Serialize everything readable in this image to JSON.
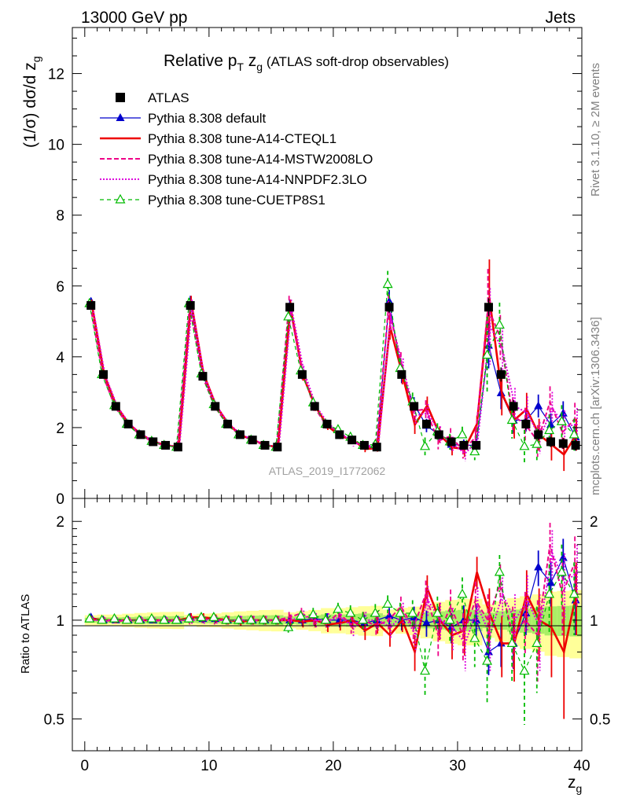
{
  "header": {
    "left": "13000 GeV pp",
    "right": "Jets",
    "side_rivet": "Rivet 3.1.10, ≥ 2M events",
    "side_mcplots": "mcplots.cern.ch [arXiv:1306.3436]",
    "watermark": "ATLAS_2019_I1772062"
  },
  "chart_data": {
    "type": "scatter",
    "title_main": "Relative p",
    "title_sub_T": "T",
    "title_mid": " z",
    "title_sub_g": "g",
    "title_note": " (ATLAS soft-drop observables)",
    "ylabel_main": "(1/σ) dσ/d z",
    "ylabel_sub": "g",
    "ylabel_ratio": "Ratio to ATLAS",
    "xlabel_main": "z",
    "xlabel_sub": "g",
    "xlim": [
      -1,
      40
    ],
    "ylim_main": [
      0,
      13.3
    ],
    "ylim_ratio": [
      0.4,
      2.35
    ],
    "x_ticks": [
      "0",
      "10",
      "20",
      "30",
      "40"
    ],
    "y_ticks_main": [
      "0",
      "2",
      "4",
      "6",
      "8",
      "10",
      "12"
    ],
    "y_ticks_ratio": [
      "0.5",
      "1",
      "2"
    ],
    "x": [
      0.5,
      1.5,
      2.5,
      3.5,
      4.5,
      5.5,
      6.5,
      7.5,
      8.5,
      9.5,
      10.5,
      11.5,
      12.5,
      13.5,
      14.5,
      15.5,
      16.5,
      17.5,
      18.5,
      19.5,
      20.5,
      21.5,
      22.5,
      23.5,
      24.5,
      25.5,
      26.5,
      27.5,
      28.5,
      29.5,
      30.5,
      31.5,
      32.5,
      33.5,
      34.5,
      35.5,
      36.5,
      37.5,
      38.5,
      39.5
    ],
    "atlas": [
      5.45,
      3.5,
      2.6,
      2.1,
      1.8,
      1.6,
      1.5,
      1.45,
      5.45,
      3.45,
      2.6,
      2.1,
      1.8,
      1.65,
      1.5,
      1.45,
      5.4,
      3.5,
      2.6,
      2.1,
      1.8,
      1.65,
      1.5,
      1.45,
      5.4,
      3.5,
      2.6,
      2.1,
      1.8,
      1.6,
      1.5,
      1.5,
      5.4,
      3.5,
      2.6,
      2.1,
      1.8,
      1.6,
      1.55,
      1.5
    ],
    "atlas_err": [
      0.05,
      0.04,
      0.03,
      0.03,
      0.03,
      0.03,
      0.03,
      0.03,
      0.06,
      0.05,
      0.04,
      0.04,
      0.04,
      0.04,
      0.04,
      0.04,
      0.1,
      0.08,
      0.07,
      0.07,
      0.06,
      0.06,
      0.06,
      0.06,
      0.15,
      0.12,
      0.1,
      0.1,
      0.1,
      0.1,
      0.1,
      0.1,
      0.25,
      0.2,
      0.18,
      0.16,
      0.15,
      0.15,
      0.15,
      0.15
    ],
    "series": [
      {
        "name": "ATLAS",
        "color": "#000000"
      },
      {
        "name": "Pythia 8.308 default",
        "color": "#0000cc",
        "ratio": [
          1.02,
          1.0,
          1.0,
          1.0,
          1.0,
          1.0,
          1.0,
          1.0,
          1.02,
          1.01,
          1.01,
          1.0,
          1.0,
          1.0,
          1.0,
          1.0,
          1.0,
          1.0,
          1.01,
          1.0,
          1.0,
          1.0,
          0.98,
          1.0,
          1.03,
          1.0,
          1.02,
          0.98,
          1.0,
          0.95,
          1.0,
          1.0,
          0.8,
          0.85,
          0.85,
          1.05,
          1.45,
          1.3,
          1.55,
          1.15
        ],
        "ratio_err": [
          0.02,
          0.02,
          0.02,
          0.02,
          0.02,
          0.02,
          0.02,
          0.02,
          0.03,
          0.03,
          0.03,
          0.03,
          0.03,
          0.03,
          0.03,
          0.03,
          0.04,
          0.04,
          0.05,
          0.05,
          0.05,
          0.05,
          0.06,
          0.06,
          0.06,
          0.07,
          0.08,
          0.09,
          0.1,
          0.1,
          0.11,
          0.12,
          0.12,
          0.13,
          0.14,
          0.15,
          0.18,
          0.2,
          0.22,
          0.25
        ]
      },
      {
        "name": "Pythia 8.308 tune-A14-CTEQL1",
        "color": "#ee0000",
        "ratio": [
          1.01,
          1.0,
          1.0,
          1.0,
          1.0,
          1.0,
          1.0,
          1.0,
          1.02,
          1.02,
          1.01,
          1.0,
          0.99,
          1.0,
          1.0,
          1.0,
          1.0,
          0.99,
          1.0,
          0.97,
          0.98,
          1.0,
          0.93,
          0.98,
          0.9,
          1.0,
          0.8,
          1.25,
          1.0,
          0.9,
          0.93,
          1.4,
          1.05,
          0.85,
          0.85,
          1.2,
          1.0,
          0.95,
          0.8,
          1.2
        ],
        "ratio_err": [
          0.02,
          0.02,
          0.02,
          0.02,
          0.02,
          0.02,
          0.02,
          0.02,
          0.03,
          0.03,
          0.03,
          0.03,
          0.03,
          0.03,
          0.03,
          0.03,
          0.04,
          0.04,
          0.05,
          0.05,
          0.05,
          0.06,
          0.06,
          0.07,
          0.07,
          0.08,
          0.1,
          0.12,
          0.13,
          0.14,
          0.15,
          0.16,
          0.2,
          0.18,
          0.2,
          0.22,
          0.25,
          0.28,
          0.3,
          0.3
        ]
      },
      {
        "name": "Pythia 8.308 tune-A14-MSTW2008LO",
        "color": "#ee0088",
        "ratio": [
          1.0,
          1.0,
          0.99,
          1.0,
          1.0,
          1.0,
          0.99,
          1.0,
          1.0,
          1.01,
          1.0,
          1.0,
          1.0,
          1.0,
          1.0,
          1.0,
          1.02,
          1.05,
          1.0,
          0.98,
          1.05,
          0.97,
          1.0,
          0.96,
          1.0,
          1.1,
          0.95,
          1.2,
          0.9,
          1.1,
          0.9,
          1.15,
          1.0,
          1.3,
          0.9,
          1.0,
          0.9,
          1.7,
          1.2,
          1.5
        ],
        "ratio_err": [
          0.02,
          0.02,
          0.02,
          0.02,
          0.02,
          0.02,
          0.02,
          0.02,
          0.03,
          0.03,
          0.03,
          0.03,
          0.03,
          0.03,
          0.03,
          0.03,
          0.04,
          0.04,
          0.05,
          0.05,
          0.05,
          0.06,
          0.06,
          0.07,
          0.07,
          0.08,
          0.1,
          0.12,
          0.13,
          0.14,
          0.15,
          0.16,
          0.2,
          0.18,
          0.2,
          0.22,
          0.25,
          0.28,
          0.3,
          0.3
        ]
      },
      {
        "name": "Pythia 8.308 tune-A14-NNPDF2.3LO",
        "color": "#dd00dd",
        "ratio": [
          1.0,
          1.0,
          1.0,
          1.0,
          1.0,
          1.0,
          1.0,
          1.0,
          1.0,
          1.0,
          1.0,
          1.0,
          1.0,
          1.0,
          1.0,
          1.0,
          1.0,
          1.03,
          1.0,
          1.0,
          1.02,
          0.95,
          1.0,
          1.0,
          0.95,
          1.05,
          0.9,
          1.15,
          1.0,
          0.95,
          0.85,
          1.1,
          0.9,
          1.2,
          1.0,
          1.15,
          0.95,
          1.6,
          1.3,
          1.4
        ],
        "ratio_err": [
          0.02,
          0.02,
          0.02,
          0.02,
          0.02,
          0.02,
          0.02,
          0.02,
          0.03,
          0.03,
          0.03,
          0.03,
          0.03,
          0.03,
          0.03,
          0.03,
          0.04,
          0.04,
          0.05,
          0.05,
          0.05,
          0.06,
          0.06,
          0.07,
          0.07,
          0.08,
          0.1,
          0.12,
          0.13,
          0.14,
          0.15,
          0.16,
          0.2,
          0.18,
          0.2,
          0.22,
          0.25,
          0.28,
          0.3,
          0.3
        ]
      },
      {
        "name": "Pythia 8.308 tune-CUETP8S1",
        "color": "#00bb00",
        "ratio": [
          1.01,
          1.0,
          1.01,
          1.0,
          1.0,
          1.01,
          1.0,
          1.0,
          1.01,
          1.02,
          1.02,
          1.0,
          1.0,
          1.0,
          1.0,
          1.0,
          0.95,
          1.03,
          1.04,
          1.0,
          1.08,
          1.05,
          1.0,
          1.05,
          1.12,
          1.05,
          1.05,
          0.7,
          1.05,
          1.0,
          1.2,
          0.88,
          0.75,
          1.4,
          0.85,
          0.7,
          0.85,
          1.2,
          1.4,
          1.2
        ],
        "ratio_err": [
          0.02,
          0.02,
          0.02,
          0.02,
          0.02,
          0.02,
          0.02,
          0.02,
          0.03,
          0.03,
          0.03,
          0.03,
          0.03,
          0.03,
          0.03,
          0.03,
          0.04,
          0.04,
          0.05,
          0.05,
          0.05,
          0.06,
          0.06,
          0.07,
          0.07,
          0.08,
          0.1,
          0.12,
          0.13,
          0.14,
          0.15,
          0.16,
          0.2,
          0.18,
          0.2,
          0.22,
          0.25,
          0.28,
          0.3,
          0.3
        ]
      }
    ],
    "legend_placement": "top-left"
  }
}
